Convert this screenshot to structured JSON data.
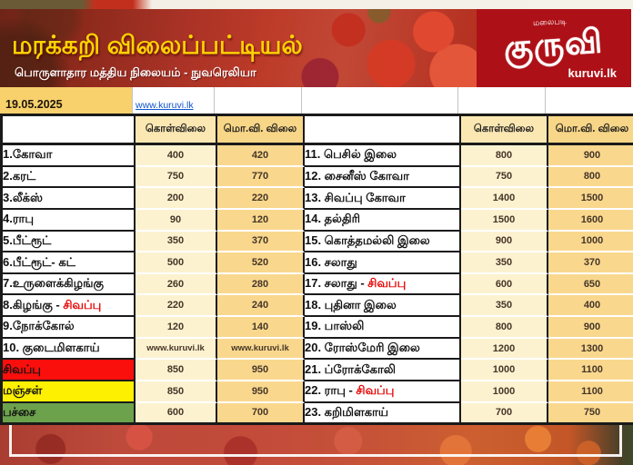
{
  "header": {
    "title": "மரக்கறி விலைப்பட்டியல்",
    "subtitle": "பொருளாதார மத்திய நிலையம் - நுவரெலியா",
    "logo": {
      "tagline": "மலைபடி",
      "name": "குருவி",
      "domain": "kuruvi.lk"
    }
  },
  "date_row": {
    "date": "19.05.2025",
    "website_link": "www.kuruvi.lk"
  },
  "columns": {
    "buy": "கொள்விலை",
    "retail": "மொ.வி. விலை"
  },
  "table": {
    "left_rows": [
      {
        "name": "1.கோவா",
        "buy": "400",
        "retail": "420"
      },
      {
        "name": "2.கரட்",
        "buy": "750",
        "retail": "770"
      },
      {
        "name": "3.லீக்ஸ்",
        "buy": "200",
        "retail": "220"
      },
      {
        "name": "4.ராபு",
        "buy": "90",
        "retail": "120"
      },
      {
        "name": "5.பீட்ரூட்",
        "buy": "350",
        "retail": "370"
      },
      {
        "name": "6.பீட்ரூட்- கட்",
        "buy": "500",
        "retail": "520"
      },
      {
        "name": "7.உருளைக்கிழங்கு",
        "buy": "260",
        "retail": "280"
      },
      {
        "name": "8.கிழங்கு - ",
        "red": "சிவப்பு",
        "buy": "220",
        "retail": "240"
      },
      {
        "name": "9.நோக்கோல்",
        "buy": "120",
        "retail": "140"
      },
      {
        "name": "10. குடைமிளகாய்",
        "buy": "www.kuruvi.lk",
        "retail": "www.kuruvi.lk"
      },
      {
        "name": "சிவப்பு",
        "bg": "#fa0f0c",
        "buy": "850",
        "retail": "950"
      },
      {
        "name": "மஞ்சள்",
        "bg": "#fdf000",
        "buy": "850",
        "retail": "950"
      },
      {
        "name": "பச்சை",
        "bg": "#6ca24c",
        "buy": "600",
        "retail": "700"
      }
    ],
    "right_rows": [
      {
        "name": "11. பெசில் இலை",
        "buy": "800",
        "retail": "900"
      },
      {
        "name": "12. சைனீஸ் கோவா",
        "buy": "750",
        "retail": "800"
      },
      {
        "name": "13. சிவப்பு கோவா",
        "buy": "1400",
        "retail": "1500"
      },
      {
        "name": "14. தல்திரி",
        "buy": "1500",
        "retail": "1600"
      },
      {
        "name": "15. கொத்தமல்லி இலை",
        "buy": "900",
        "retail": "1000"
      },
      {
        "name": "16. சலாது",
        "buy": "350",
        "retail": "370"
      },
      {
        "name": "17. சலாது - ",
        "red": "சிவப்பு",
        "buy": "600",
        "retail": "650"
      },
      {
        "name": "18. புதினா இலை",
        "buy": "350",
        "retail": "400"
      },
      {
        "name": "19. பாஸ்லி",
        "buy": "800",
        "retail": "900"
      },
      {
        "name": "20. ரோஸ்மேரி இலை",
        "buy": "1200",
        "retail": "1300"
      },
      {
        "name": "21. ப்ரோக்கோலி",
        "buy": "1000",
        "retail": "1100"
      },
      {
        "name": "22. ராபு - ",
        "red": "சிவப்பு",
        "buy": "1000",
        "retail": "1100"
      },
      {
        "name": "23. கறிமிளகாய்",
        "buy": "700",
        "retail": "750"
      }
    ]
  },
  "colors": {
    "logo_red": "#ad1117",
    "title_yellow": "#ffd400",
    "date_cell_yellow": "#f8d06c",
    "buy_cell": "#fdf2d0",
    "retail_cell": "#f9d88e",
    "buy_header": "#fbe7b2",
    "retail_header": "#f8d687",
    "row_red": "#fa0f0c",
    "row_yellow": "#fdf000",
    "row_green": "#6ca24c",
    "accent_text_red": "#e60000",
    "link_blue": "#1155cc"
  }
}
